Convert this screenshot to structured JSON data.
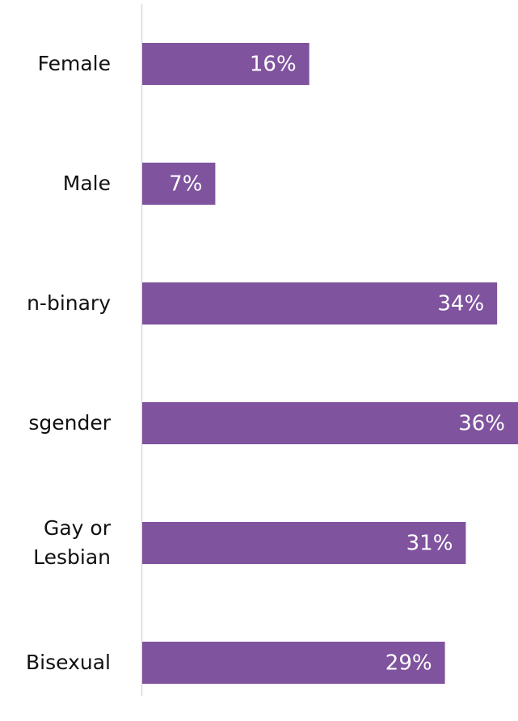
{
  "chart_data": {
    "type": "bar",
    "orientation": "horizontal",
    "categories": [
      "Female",
      "Male",
      "n-binary",
      "sgender",
      "Gay or Lesbian",
      "Bisexual"
    ],
    "values": [
      16,
      7,
      34,
      36,
      31,
      29
    ],
    "value_labels": [
      "16%",
      "7%",
      "34%",
      "36%",
      "31%",
      "29%"
    ],
    "color": "#7f539d",
    "xlim": [
      0,
      36
    ]
  }
}
